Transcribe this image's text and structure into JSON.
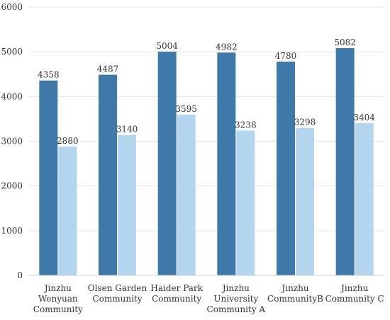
{
  "chart_data": {
    "type": "bar",
    "categories": [
      [
        "Jinzhu",
        "Wenyuan",
        "Community"
      ],
      [
        "Olsen Garden",
        "Community"
      ],
      [
        "Haider Park",
        "Community"
      ],
      [
        "Jinzhu",
        "University",
        "Community A"
      ],
      [
        "Jinzhu",
        "CommunityB"
      ],
      [
        "Jinzhu",
        "Community C"
      ]
    ],
    "series": [
      {
        "values": [
          4358,
          4487,
          5004,
          4982,
          4780,
          5082
        ],
        "color": "#3e79aa"
      },
      {
        "values": [
          2880,
          3140,
          3595,
          3238,
          3298,
          3404
        ],
        "color": "#b4d5ee"
      }
    ],
    "ylim": [
      0,
      6000
    ],
    "yticks": [
      0,
      1000,
      2000,
      3000,
      4000,
      5000,
      6000
    ],
    "grid": true,
    "title": "",
    "xlabel": "",
    "ylabel": ""
  }
}
